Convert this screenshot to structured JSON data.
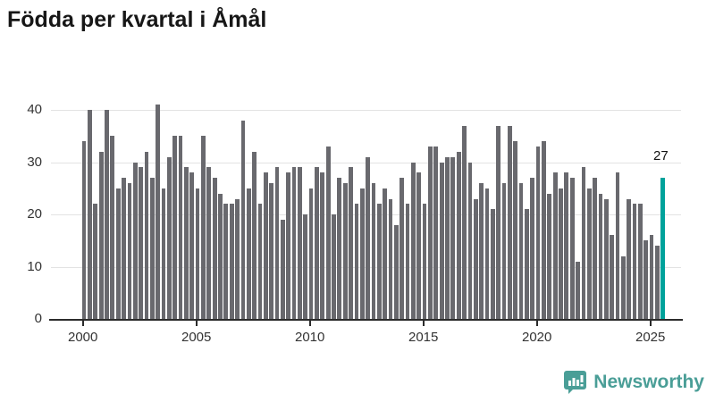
{
  "title": "Födda per kvartal i Åmål",
  "chart_data": {
    "type": "bar",
    "title": "Födda per kvartal i Åmål",
    "x_unit": "quarter",
    "x_start": "2000-Q1",
    "x_end": "2025-Q3",
    "values": [
      34,
      40,
      22,
      32,
      40,
      35,
      25,
      27,
      26,
      30,
      29,
      32,
      27,
      41,
      25,
      31,
      35,
      35,
      29,
      28,
      25,
      35,
      29,
      27,
      24,
      22,
      22,
      23,
      38,
      25,
      32,
      22,
      28,
      26,
      29,
      19,
      28,
      29,
      29,
      20,
      25,
      29,
      28,
      33,
      20,
      27,
      26,
      29,
      22,
      25,
      31,
      26,
      22,
      25,
      23,
      18,
      27,
      22,
      30,
      28,
      22,
      33,
      33,
      30,
      31,
      31,
      32,
      37,
      30,
      23,
      26,
      25,
      21,
      37,
      26,
      37,
      34,
      26,
      21,
      27,
      33,
      34,
      24,
      28,
      25,
      28,
      27,
      11,
      29,
      25,
      27,
      24,
      23,
      16,
      28,
      12,
      23,
      22,
      22,
      15,
      16,
      14,
      27
    ],
    "highlight_index": 102,
    "highlight_label": "27",
    "xticks": [
      "2000",
      "2005",
      "2010",
      "2015",
      "2020",
      "2025"
    ],
    "yticks": [
      0,
      10,
      20,
      30,
      40
    ],
    "ylim": [
      0,
      42
    ],
    "grid": true,
    "legend": "none",
    "bar_color": "#69696e",
    "highlight_color": "#00a29b"
  },
  "axis": {
    "text_color": "#333333",
    "grid_color": "#e3e3e3",
    "baseline_color": "#2b2b2b"
  },
  "footer": {
    "brand": "Newsworthy",
    "brand_color": "#4a9e97",
    "logo_icon": "bar-chart-pin-icon"
  }
}
